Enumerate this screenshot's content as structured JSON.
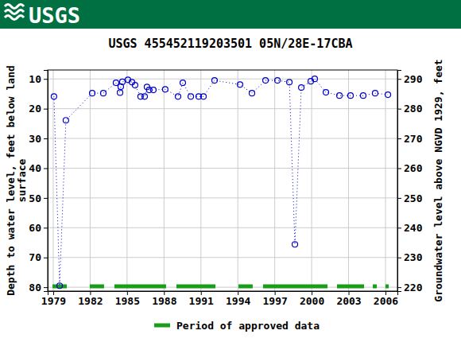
{
  "chart_data": {
    "type": "line",
    "logo_text": "USGS",
    "title": "USGS 455452119203501 05N/28E-17CBA",
    "y_label": [
      "Depth to water level, feet below land",
      "surface"
    ],
    "y2_label": "Groundwater level above NGVD 1929, feet",
    "x": [
      1979.06,
      1979.52,
      1980.03,
      1982.17,
      1983.07,
      1984.1,
      1984.43,
      1984.49,
      1984.62,
      1985.07,
      1985.4,
      1985.65,
      1986.1,
      1986.43,
      1986.62,
      1986.8,
      1987.14,
      1988.1,
      1989.14,
      1989.53,
      1990.18,
      1990.82,
      1991.21,
      1992.11,
      1994.18,
      1995.15,
      1996.25,
      1997.22,
      1998.19,
      1998.64,
      1999.16,
      1999.93,
      2000.25,
      2001.16,
      2002.26,
      2003.16,
      2004.19,
      2005.16,
      2006.2
    ],
    "series": [
      {
        "color": "#0000cc",
        "marker": "circle",
        "line_style": "dotted",
        "values": [
          15.9,
          79.5,
          23.9,
          14.8,
          14.8,
          11.3,
          14.6,
          12.6,
          11.0,
          10.3,
          11.1,
          12.1,
          15.9,
          15.9,
          12.7,
          13.7,
          13.7,
          13.5,
          15.9,
          11.3,
          15.9,
          15.9,
          15.9,
          10.5,
          11.9,
          14.8,
          10.5,
          10.5,
          11.1,
          65.6,
          12.9,
          10.8,
          10.0,
          14.5,
          15.6,
          15.6,
          15.6,
          14.8,
          15.3
        ]
      }
    ],
    "xlim": [
      1978.55,
      2006.97
    ],
    "xticks": [
      1979,
      1982,
      1985,
      1988,
      1991,
      1994,
      1997,
      2000,
      2003,
      2006
    ],
    "ylim": [
      81.3,
      7
    ],
    "yticks": [
      10,
      20,
      30,
      40,
      50,
      60,
      70,
      80
    ],
    "y2lim": [
      218.7,
      293
    ],
    "y2ticks": [
      220,
      230,
      240,
      250,
      260,
      270,
      280,
      290
    ],
    "grid": true,
    "legend": "bottom",
    "approved_label": "Period of approved data",
    "approved_color": "#1a9e1a",
    "approved_periods": [
      [
        1978.94,
        1980.1
      ],
      [
        1981.97,
        1983.13
      ],
      [
        1983.97,
        1988.17
      ],
      [
        1989.01,
        1992.18
      ],
      [
        1994.05,
        1995.21
      ],
      [
        1996.05,
        2001.29
      ],
      [
        2002.06,
        2004.26
      ],
      [
        2004.97,
        2005.29
      ],
      [
        2006.0,
        2006.26
      ]
    ]
  }
}
